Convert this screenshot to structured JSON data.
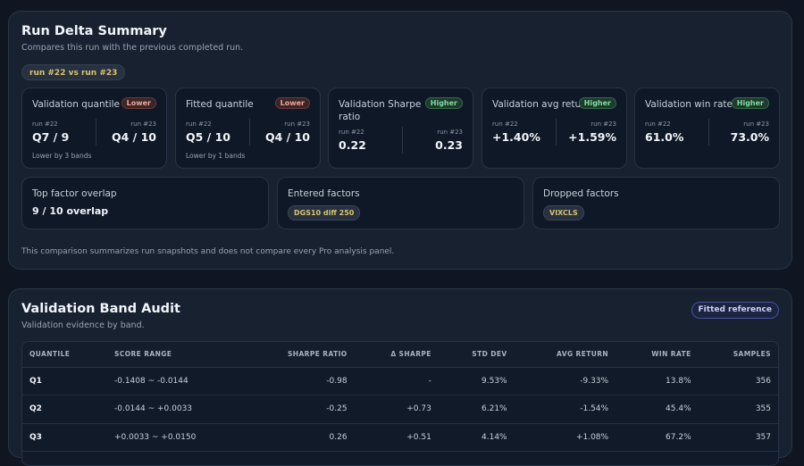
{
  "delta": {
    "title": "Run Delta Summary",
    "subtitle": "Compares this run with the previous completed run.",
    "run_chip": "run #22 vs run #23",
    "metrics": [
      {
        "title": "Validation quantile",
        "badge": "Lower",
        "prev_label": "run #22",
        "curr_label": "run #23",
        "prev": "Q7 / 9",
        "curr": "Q4 / 10",
        "note": "Lower by 3 bands"
      },
      {
        "title": "Fitted quantile",
        "badge": "Lower",
        "prev_label": "run #22",
        "curr_label": "run #23",
        "prev": "Q5 / 10",
        "curr": "Q4 / 10",
        "note": "Lower by 1 bands"
      },
      {
        "title": "Validation Sharpe ratio",
        "badge": "Higher",
        "prev_label": "run #22",
        "curr_label": "run #23",
        "prev": "0.22",
        "curr": "0.23",
        "note": ""
      },
      {
        "title": "Validation avg return",
        "badge": "Higher",
        "prev_label": "run #22",
        "curr_label": "run #23",
        "prev": "+1.40%",
        "curr": "+1.59%",
        "note": ""
      },
      {
        "title": "Validation win rate",
        "badge": "Higher",
        "prev_label": "run #22",
        "curr_label": "run #23",
        "prev": "61.0%",
        "curr": "73.0%",
        "note": ""
      }
    ],
    "overlap": {
      "title": "Top factor overlap",
      "value": "9 / 10 overlap"
    },
    "entered": {
      "title": "Entered factors",
      "chip": "DGS10 diff 250"
    },
    "dropped": {
      "title": "Dropped factors",
      "chip": "VIXCLS"
    },
    "footnote": "This comparison summarizes run snapshots and does not compare every Pro analysis panel."
  },
  "audit": {
    "title": "Validation Band Audit",
    "subtitle": "Validation evidence by band.",
    "reference_chip": "Fitted reference",
    "columns": [
      "QUANTILE",
      "SCORE RANGE",
      "SHARPE RATIO",
      "Δ SHARPE",
      "STD DEV",
      "AVG RETURN",
      "WIN RATE",
      "SAMPLES"
    ],
    "rows": [
      [
        "Q1",
        "-0.1408 ~ -0.0144",
        "-0.98",
        "-",
        "9.53%",
        "-9.33%",
        "13.8%",
        "356"
      ],
      [
        "Q2",
        "-0.0144 ~ +0.0033",
        "-0.25",
        "+0.73",
        "6.21%",
        "-1.54%",
        "45.4%",
        "355"
      ],
      [
        "Q3",
        "+0.0033 ~ +0.0150",
        "0.26",
        "+0.51",
        "4.14%",
        "+1.08%",
        "67.2%",
        "357"
      ]
    ]
  },
  "colors": {
    "lower_badge": "#f1a3a0",
    "higher_badge": "#7fdca0",
    "factor_chip": "#d9c36d",
    "reference_chip": "#c9cff7"
  }
}
